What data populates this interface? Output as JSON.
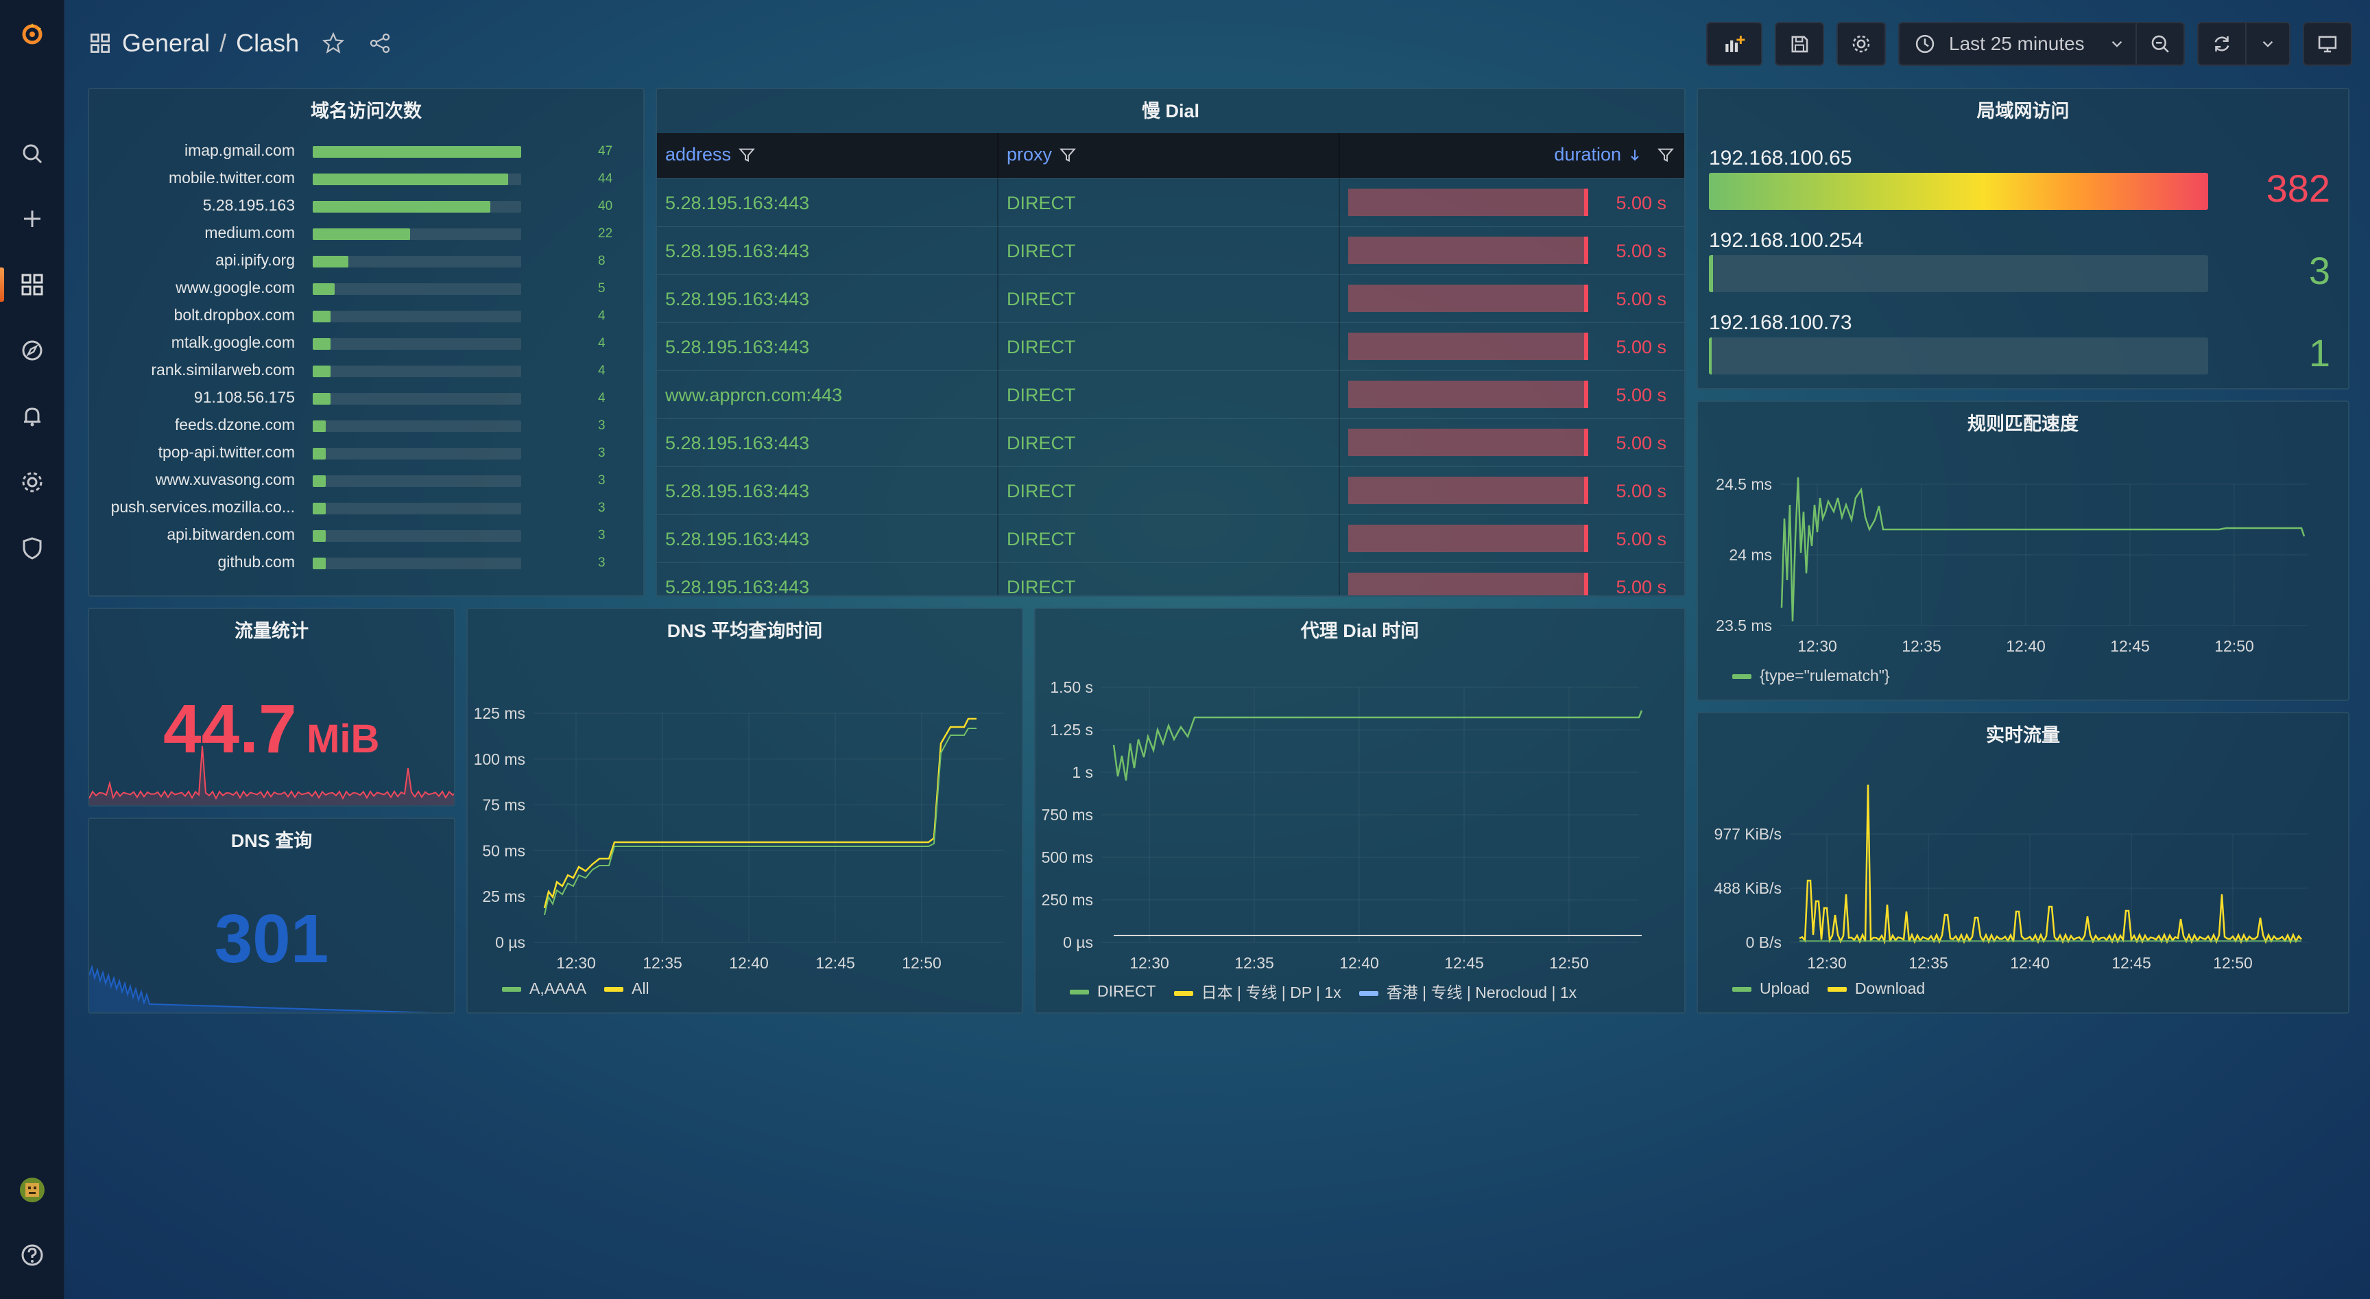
{
  "topbar": {
    "folder": "General",
    "separator": "/",
    "dashboard": "Clash",
    "time_range": "Last 25 minutes"
  },
  "colors": {
    "green": "#73bf69",
    "red": "#f2495c",
    "yellow": "#fade2a",
    "blue": "#1f60c4",
    "lightblue": "#8ab8ff"
  },
  "domains": {
    "title": "域名访问次数",
    "max": 47,
    "items": [
      {
        "label": "imap.gmail.com",
        "value": 47
      },
      {
        "label": "mobile.twitter.com",
        "value": 44
      },
      {
        "label": "5.28.195.163",
        "value": 40
      },
      {
        "label": "medium.com",
        "value": 22
      },
      {
        "label": "api.ipify.org",
        "value": 8
      },
      {
        "label": "www.google.com",
        "value": 5
      },
      {
        "label": "bolt.dropbox.com",
        "value": 4
      },
      {
        "label": "mtalk.google.com",
        "value": 4
      },
      {
        "label": "rank.similarweb.com",
        "value": 4
      },
      {
        "label": "91.108.56.175",
        "value": 4
      },
      {
        "label": "feeds.dzone.com",
        "value": 3
      },
      {
        "label": "tpop-api.twitter.com",
        "value": 3
      },
      {
        "label": "www.xuvasong.com",
        "value": 3
      },
      {
        "label": "push.services.mozilla.co...",
        "value": 3
      },
      {
        "label": "api.bitwarden.com",
        "value": 3
      },
      {
        "label": "github.com",
        "value": 3
      }
    ]
  },
  "slow_dial": {
    "title": "慢 Dial",
    "columns": {
      "address": "address",
      "proxy": "proxy",
      "duration": "duration"
    },
    "rows": [
      {
        "address": "5.28.195.163:443",
        "proxy": "DIRECT",
        "duration": "5.00 s"
      },
      {
        "address": "5.28.195.163:443",
        "proxy": "DIRECT",
        "duration": "5.00 s"
      },
      {
        "address": "5.28.195.163:443",
        "proxy": "DIRECT",
        "duration": "5.00 s"
      },
      {
        "address": "5.28.195.163:443",
        "proxy": "DIRECT",
        "duration": "5.00 s"
      },
      {
        "address": "www.apprcn.com:443",
        "proxy": "DIRECT",
        "duration": "5.00 s"
      },
      {
        "address": "5.28.195.163:443",
        "proxy": "DIRECT",
        "duration": "5.00 s"
      },
      {
        "address": "5.28.195.163:443",
        "proxy": "DIRECT",
        "duration": "5.00 s"
      },
      {
        "address": "5.28.195.163:443",
        "proxy": "DIRECT",
        "duration": "5.00 s"
      },
      {
        "address": "5.28.195.163:443",
        "proxy": "DIRECT",
        "duration": "5.00 s"
      }
    ]
  },
  "lan": {
    "title": "局域网访问",
    "max": 382,
    "items": [
      {
        "label": "192.168.100.65",
        "value": "382",
        "ratio": 1.0
      },
      {
        "label": "192.168.100.254",
        "value": "3",
        "ratio": 0.008
      },
      {
        "label": "192.168.100.73",
        "value": "1",
        "ratio": 0.003
      }
    ]
  },
  "traffic": {
    "title": "流量统计",
    "value": "44.7",
    "unit": "MiB"
  },
  "dns_query": {
    "title": "DNS 查询",
    "value": "301"
  },
  "charts": {
    "rule_speed": {
      "title": "规则匹配速度",
      "yticks": [
        "24.5 ms",
        "24 ms",
        "23.5 ms"
      ],
      "xticks": [
        "12:30",
        "12:35",
        "12:40",
        "12:45",
        "12:50"
      ],
      "legend": [
        "{type=\"rulematch\"}"
      ]
    },
    "dns_avg": {
      "title": "DNS 平均查询时间",
      "yticks": [
        "125 ms",
        "100 ms",
        "75 ms",
        "50 ms",
        "25 ms",
        "0 µs"
      ],
      "xticks": [
        "12:30",
        "12:35",
        "12:40",
        "12:45",
        "12:50"
      ],
      "legend": [
        "A,AAAA",
        "All"
      ]
    },
    "proxy_dial": {
      "title": "代理 Dial 时间",
      "yticks": [
        "1.50 s",
        "1.25 s",
        "1 s",
        "750 ms",
        "500 ms",
        "250 ms",
        "0 µs"
      ],
      "xticks": [
        "12:30",
        "12:35",
        "12:40",
        "12:45",
        "12:50"
      ],
      "legend": [
        "DIRECT",
        "日本 | 专线 | DP | 1x",
        "香港 | 专线 | Nerocloud | 1x"
      ]
    },
    "realtime": {
      "title": "实时流量",
      "yticks": [
        "977 KiB/s",
        "488 KiB/s",
        "0 B/s"
      ],
      "xticks": [
        "12:30",
        "12:35",
        "12:40",
        "12:45",
        "12:50"
      ],
      "legend": [
        "Upload",
        "Download"
      ]
    }
  }
}
